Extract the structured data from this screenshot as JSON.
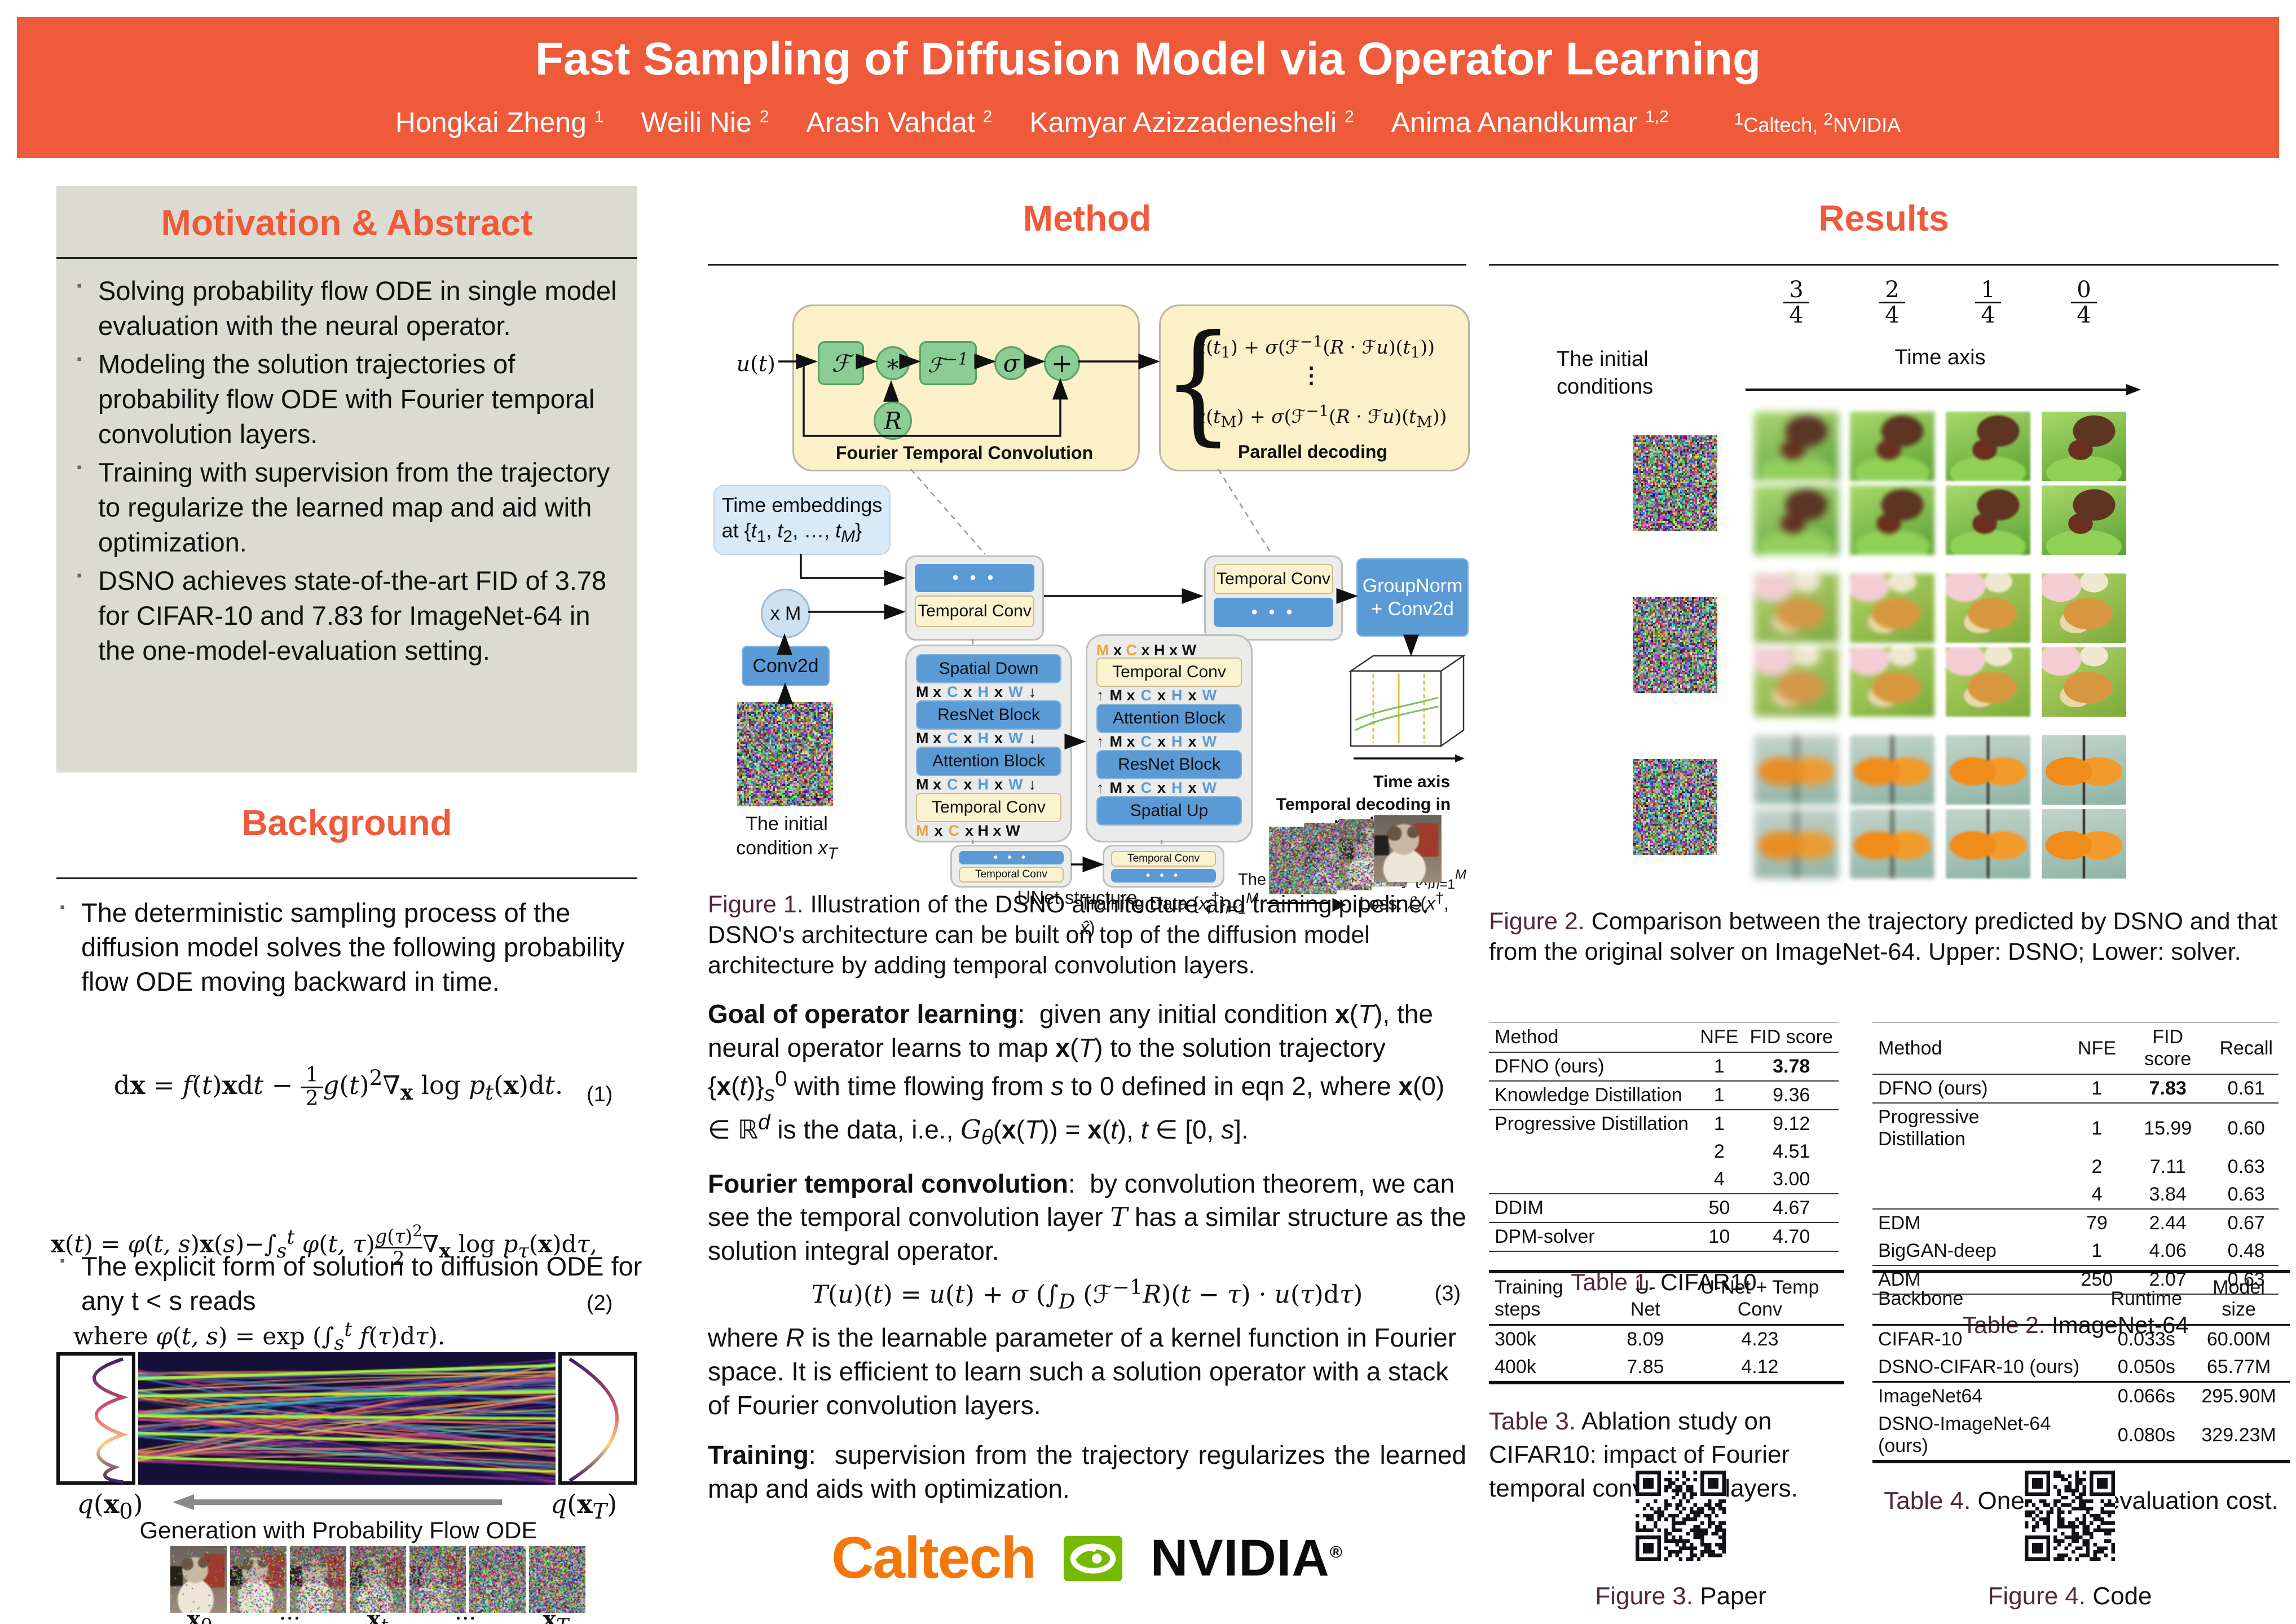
{
  "colors": {
    "accent_orange": "#EE5A3A",
    "panel_gray": "#DBDBD2",
    "caption_maroon": "#51263C",
    "diagram_blue": "#5B9BD5",
    "diagram_yellow": "#FBF0C8",
    "diagram_green": "#8CCD96",
    "nvidia_green": "#76B900",
    "caltech_orange": "#F4770B"
  },
  "header": {
    "title": "Fast Sampling of Diffusion Model via Operator Learning",
    "authors": [
      {
        "name": "Hongkai Zheng",
        "sup": "1"
      },
      {
        "name": "Weili Nie",
        "sup": "2"
      },
      {
        "name": "Arash Vahdat",
        "sup": "2"
      },
      {
        "name": "Kamyar Azizzadenesheli",
        "sup": "2"
      },
      {
        "name": "Anima Anandkumar",
        "sup": "1,2"
      }
    ],
    "affiliation_html": "<sup>1</sup>Caltech, <sup>2</sup>NVIDIA"
  },
  "abstract": {
    "title": "Motivation & Abstract",
    "bullets": [
      "Solving probability flow ODE in single model evaluation with the neural operator.",
      "Modeling the solution trajectories of probability flow ODE with Fourier temporal convolution layers.",
      "Training with supervision from the trajectory to regularize the learned map and aid with optimization.",
      "DSNO achieves state-of-the-art FID of 3.78 for CIFAR-10 and 7.83 for ImageNet-64 in the one-model-evaluation setting."
    ]
  },
  "background": {
    "title": "Background",
    "bullet1": "The deterministic sampling process of the diffusion model solves the following probability flow ODE moving backward in time.",
    "eq1_html": "d<b>x</b> = <i>f</i>(<i>t</i>)<b>x</b>d<i>t</i> − <span class='fr'><span class='n'>1</span><span class='d'>2</span></span><i>g</i>(<i>t</i>)<sup>2</sup>∇<sub><b>x</b></sub> log <i>p</i><sub><i>t</i></sub>(<b>x</b>)d<i>t</i>.",
    "eq1_num": "(1)",
    "bullet2": "The explicit form of solution to diffusion ODE for any t < s reads",
    "eq2_html": "<b>x</b>(<i>t</i>) = <i>φ</i>(<i>t, s</i>)<b>x</b>(<i>s</i>)−∫<sub><i>s</i></sub><sup><i>t</i></sup> <i>φ</i>(<i>t, τ</i>)<span class='fr'><span class='n'><i>g</i>(<i>τ</i>)<sup>2</sup></span><span class='d'>2</span></span>∇<sub><b>x</b></sub> log <i>p</i><sub><i>τ</i></sub>(<b>x</b>)d<i>τ</i>,",
    "eq2_num": "(2)",
    "where_html": "where <i>φ</i>(<i>t, s</i>) = exp (∫<sub><i>s</i></sub><sup><i>t</i></sup> <i>f</i>(<i>τ</i>)d<i>τ</i>).",
    "flow": {
      "left_label_html": "<i>q</i>(<b>x</b><sub>0</sub>)",
      "right_label_html": "<i>q</i>(<b>x</b><sub><i>T</i></sub>)",
      "arrow_label": "Generation with Probability Flow ODE",
      "seq_labels_html": [
        "<b>x</b><sub>0</sub>",
        "···",
        "<b>x</b><sub><i>t</i></sub>",
        "···",
        "<b>x</b><sub><i>T</i></sub>"
      ]
    }
  },
  "method": {
    "title": "Method",
    "diagram": {
      "u_label_html": "<i>u</i>(<i>t</i>)",
      "ftc_chips": [
        "ℱ",
        "∗",
        "ℱ<sup>−1</sup>",
        "σ",
        "+"
      ],
      "r_label": "R",
      "ftc_caption": "Fourier Temporal Convolution",
      "parallel_line1_html": "<i>u</i>(<i>t</i><sub>1</sub>) + <i>σ</i>(ℱ<sup>−1</sup>(<i>R</i> · ℱ<i>u</i>)(<i>t</i><sub>1</sub>))",
      "parallel_dots": "⋮",
      "parallel_line2_html": "<i>u</i>(<i>t</i><sub>M</sub>) + <i>σ</i>(ℱ<sup>−1</sup>(<i>R</i> · ℱ<i>u</i>)(<i>t</i><sub>M</sub>))",
      "parallel_caption": "Parallel decoding",
      "time_chip_html": "Time embeddings<br>at {<i>t</i><sub>1</sub>, <i>t</i><sub>2</sub>, …, <i>t<sub>M</sub></i>}",
      "xm_label": "x M",
      "conv2d_label": "Conv2d",
      "init_cond_html": "The initial<br>condition <i>x<sub>T</sub></i>",
      "temporal_conv": "Temporal Conv",
      "dots": "• • •",
      "unet_left": [
        "Spatial Down",
        "ResNet Block",
        "Attention Block",
        "Temporal Conv"
      ],
      "unet_right": [
        "Temporal Conv",
        "Attention Block",
        "ResNet Block",
        "Spatial Up"
      ],
      "dim_html": "M x <span class='c'>C</span> x <span class='c'>H</span> x <span class='c'>W</span>",
      "dim_out_html": "<span class='o'>M</span> x <span class='o'>C</span> x H x W",
      "groupnorm_html": "GroupNorm<br>+ Conv2d",
      "time_axis": "Time axis",
      "temporal_decoding": "Temporal decoding in parallel",
      "predicted_html": "The predicted trajectory {<i>x̂<sub>i</sub></i>}<sub><i>i</i>=1</sub><sup><i>M</i></sup>",
      "training_data_html": "Training Data {<i>x<sub>i</sub></i><sup>†</sup>}<sub><i>i</i>=1</sub><sup><i>M</i></sup>",
      "loss_html": "Loss: ℒ(<i>x</i><sup>†</sup>, <i>x̂</i>)",
      "unet_structure": "UNet structure"
    },
    "fig1_prefix": "Figure 1.",
    "fig1_caption": " Illustration of the DSNO architecture and training pipeline. DSNO's architecture can be built on top of the diffusion model architecture by adding temporal convolution layers.",
    "goal_head": "Goal of operator learning",
    "goal_html": ":&nbsp; given any initial condition <b>x</b>(<i>T</i>), the neural operator learns to map <b>x</b>(<i>T</i>) to the solution trajectory {<b>x</b>(<i>t</i>)}<sub><i>s</i></sub><sup>0</sup> with time flowing from <i>s</i> to 0 defined in eqn 2, where <b>x</b>(0) ∈ ℝ<sup><i>d</i></sup> is the data, i.e., <i class='scr'>G</i><sub><i>θ</i></sub>(<b>x</b>(<i>T</i>)) = <b>x</b>(<i>t</i>), <i>t</i> ∈ [0, <i>s</i>].",
    "fourier_head": "Fourier temporal convolution",
    "fourier_html": ":&nbsp; by convolution theorem, we can see the temporal convolution layer <i class='scr'>T</i> has a similar structure as the solution integral operator.",
    "eq3_html": "<i class='scr'>T</i>(<i>u</i>)(<i>t</i>) = <i>u</i>(<i>t</i>) + <i>σ</i> (∫<sub><i>D</i></sub> (ℱ<sup>−1</sup><i>R</i>)(<i>t</i> − <i>τ</i>) · <i>u</i>(<i>τ</i>)d<i>τ</i>)",
    "eq3_num": "(3)",
    "after_eq3_html": "where <i>R</i> is the learnable parameter of a kernel function in Fourier space. It is efficient to learn such a solution operator with a stack of Fourier convolution layers.",
    "training_head": "Training",
    "training_html": ":&nbsp; supervision from the trajectory regularizes the learned map and aids with optimization.",
    "caltech_logo": "Caltech",
    "nvidia_logo": "NVIDIA",
    "nvidia_reg": "®"
  },
  "results": {
    "title": "Results",
    "fig2": {
      "fracs": [
        [
          "3",
          "4"
        ],
        [
          "2",
          "4"
        ],
        [
          "1",
          "4"
        ],
        [
          "0",
          "4"
        ]
      ],
      "initial_label_html": "The initial<br>conditions",
      "time_axis": "Time axis",
      "groups": [
        "ant-on-leaf",
        "butterfly-on-flowers",
        "monarch-butterfly"
      ],
      "caption_prefix": "Figure 2.",
      "caption": " Comparison between the trajectory predicted by DSNO and that from the original solver on ImageNet-64. Upper: DSNO; Lower: solver."
    },
    "table1": {
      "headers": [
        "Method",
        "NFE",
        "FID score"
      ],
      "rows": [
        {
          "c": [
            "DFNO (ours)",
            "1",
            "3.78"
          ],
          "b": [
            2
          ],
          "r": true
        },
        {
          "c": [
            "Knowledge Distillation",
            "1",
            "9.36"
          ],
          "r": true
        },
        {
          "c": [
            "Progressive Distillation",
            "1",
            "9.12"
          ]
        },
        {
          "c": [
            "",
            "2",
            "4.51"
          ]
        },
        {
          "c": [
            "",
            "4",
            "3.00"
          ],
          "r": true
        },
        {
          "c": [
            "DDIM",
            "50",
            "4.67"
          ],
          "r": true
        },
        {
          "c": [
            "DPM-solver",
            "10",
            "4.70"
          ],
          "r": true
        }
      ],
      "caption_prefix": "Table 1.",
      "caption": " CIFAR10"
    },
    "table2": {
      "headers": [
        "Method",
        "NFE",
        "FID score",
        "Recall"
      ],
      "rows": [
        {
          "c": [
            "DFNO (ours)",
            "1",
            "7.83",
            "0.61"
          ],
          "b": [
            2
          ],
          "r": true
        },
        {
          "c": [
            "Progressive Distillation",
            "1",
            "15.99",
            "0.60"
          ]
        },
        {
          "c": [
            "",
            "2",
            "7.11",
            "0.63"
          ]
        },
        {
          "c": [
            "",
            "4",
            "3.84",
            "0.63"
          ],
          "r": true
        },
        {
          "c": [
            "EDM",
            "79",
            "2.44",
            "0.67"
          ]
        },
        {
          "c": [
            "BigGAN-deep",
            "1",
            "4.06",
            "0.48"
          ],
          "r": true
        },
        {
          "c": [
            "ADM",
            "250",
            "2.07",
            "0.63"
          ],
          "r": true
        }
      ],
      "caption_prefix": "Table 2.",
      "caption": " ImageNet-64"
    },
    "table3": {
      "headers": [
        "Training steps",
        "U-Net",
        "U-Net + Temp Conv"
      ],
      "rows": [
        {
          "c": [
            "300k",
            "8.09",
            "4.23"
          ]
        },
        {
          "c": [
            "400k",
            "7.85",
            "4.12"
          ]
        }
      ],
      "caption_prefix": "Table 3.",
      "caption": " Ablation study on CIFAR10: impact of Fourier temporal convolution layers."
    },
    "table4": {
      "headers": [
        "Backbone",
        "Runtime",
        "Model size"
      ],
      "rows": [
        {
          "c": [
            "CIFAR-10",
            "0.033s",
            "60.00M"
          ]
        },
        {
          "c": [
            "DSNO-CIFAR-10 (ours)",
            "0.050s",
            "65.77M"
          ],
          "r": true
        },
        {
          "c": [
            "ImageNet64",
            "0.066s",
            "295.90M"
          ]
        },
        {
          "c": [
            "DSNO-ImageNet-64 (ours)",
            "0.080s",
            "329.23M"
          ]
        }
      ],
      "caption_prefix": "Table 4.",
      "caption": " One model evaluation cost."
    },
    "fig3_prefix": "Figure 3.",
    "fig3_caption": " Paper",
    "fig4_prefix": "Figure 4.",
    "fig4_caption": " Code"
  }
}
